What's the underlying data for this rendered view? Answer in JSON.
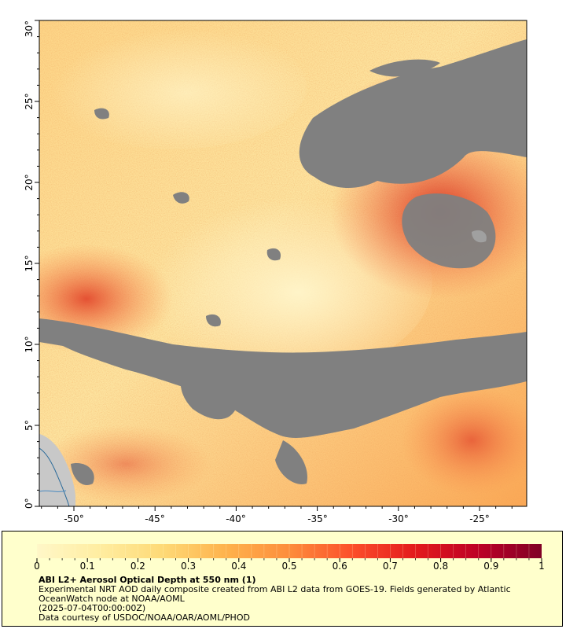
{
  "map": {
    "lat_ticks": [
      "0°",
      "5°",
      "10°",
      "15°",
      "20°",
      "25°",
      "30°"
    ],
    "lon_ticks": [
      "-50°",
      "-45°",
      "-40°",
      "-35°",
      "-30°",
      "-25°"
    ],
    "colors": {
      "no_data": "#808080",
      "land": "#c8c8c8",
      "coast": "#2a6a9a"
    }
  },
  "legend": {
    "title": "ABI L2+ Aerosol Optical Depth at 550 nm (1)",
    "description": "Experimental NRT AOD daily composite created from ABI L2 data from GOES-19. Fields generated by Atlantic OceanWatch node at NOAA/AOML",
    "timestamp": "(2025-07-04T00:00:00Z)",
    "credit": "Data courtesy of USDOC/NOAA/OAR/AOML/PHOD",
    "colorbar": {
      "min": 0,
      "max": 1,
      "tick_labels": [
        "0",
        "0.1",
        "0.2",
        "0.3",
        "0.4",
        "0.5",
        "0.6",
        "0.7",
        "0.8",
        "0.9",
        "1"
      ],
      "colors": [
        "#fff7c8",
        "#ffeda0",
        "#fed976",
        "#feb24c",
        "#fd8d3c",
        "#fc4e2a",
        "#e31a1c",
        "#bd0026",
        "#800026"
      ]
    },
    "background": "#ffffcc"
  }
}
